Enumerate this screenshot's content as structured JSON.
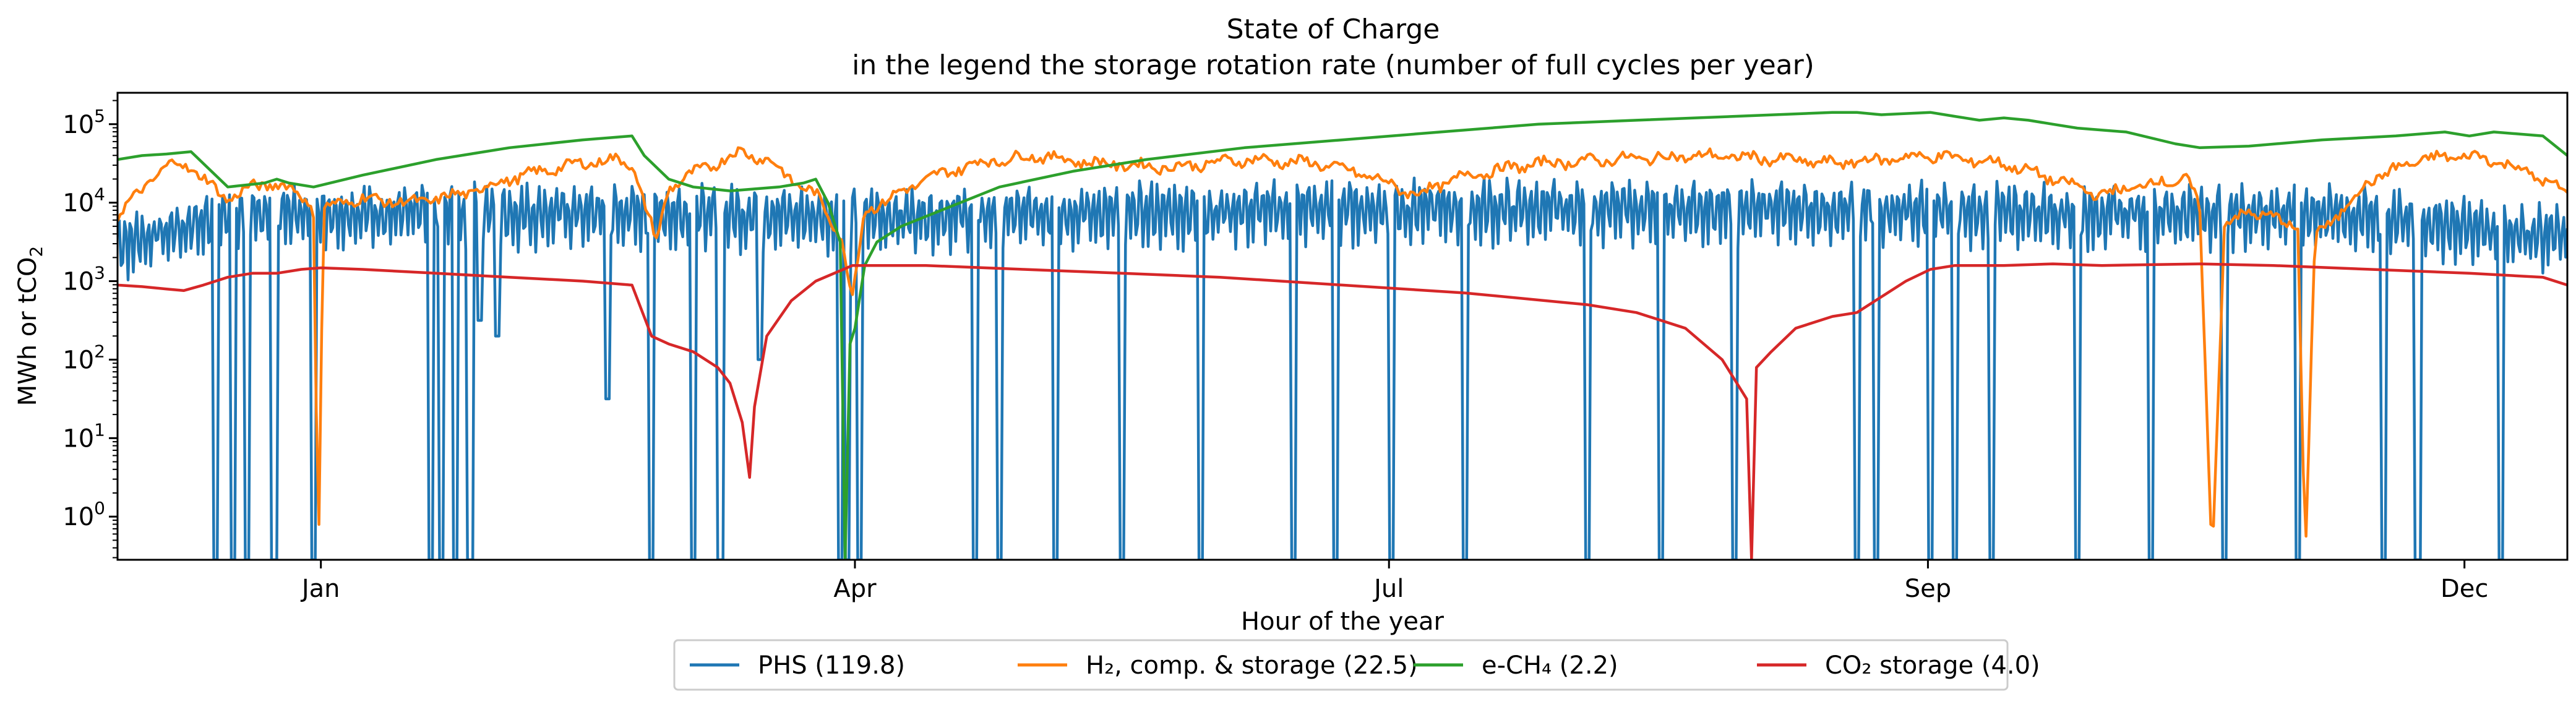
{
  "chart_data": {
    "type": "line",
    "title": "State of Charge",
    "subtitle": "in the legend the storage rotation rate (number of full cycles per year)",
    "xlabel": "Hour of the year",
    "ylabel": "MWh or tCO",
    "ylabel_sub": "2",
    "yscale": "log",
    "xlim": [
      0,
      1
    ],
    "ylim_exp": [
      -0.55,
      5.4
    ],
    "grid": false,
    "legend_placement": "bottom-center",
    "x_ticks": [
      {
        "label": "Jan",
        "pos": 0.083
      },
      {
        "label": "Apr",
        "pos": 0.301
      },
      {
        "label": "Jul",
        "pos": 0.519
      },
      {
        "label": "Sep",
        "pos": 0.739
      },
      {
        "label": "Dec",
        "pos": 0.958
      }
    ],
    "y_ticks": [
      {
        "base": "10",
        "exp": "0",
        "value": 0
      },
      {
        "base": "10",
        "exp": "1",
        "value": 1
      },
      {
        "base": "10",
        "exp": "2",
        "value": 2
      },
      {
        "base": "10",
        "exp": "3",
        "value": 3
      },
      {
        "base": "10",
        "exp": "4",
        "value": 4
      },
      {
        "base": "10",
        "exp": "5",
        "value": 5
      }
    ],
    "series": [
      {
        "name": "PHS (119.8)",
        "color": "#1f77b4",
        "baseline": [
          [
            0.0,
            3.6
          ],
          [
            0.05,
            4.0
          ],
          [
            0.1,
            4.0
          ],
          [
            0.2,
            4.0
          ],
          [
            0.3,
            3.95
          ],
          [
            0.4,
            4.0
          ],
          [
            0.5,
            4.05
          ],
          [
            0.6,
            4.05
          ],
          [
            0.7,
            4.05
          ],
          [
            0.8,
            4.0
          ],
          [
            0.9,
            4.0
          ],
          [
            1.0,
            3.7
          ]
        ],
        "drops": [
          [
            0.04,
            -0.6
          ],
          [
            0.047,
            -0.6
          ],
          [
            0.053,
            -0.6
          ],
          [
            0.064,
            -0.6
          ],
          [
            0.08,
            -0.6
          ],
          [
            0.128,
            -0.6
          ],
          [
            0.132,
            -0.6
          ],
          [
            0.138,
            -0.6
          ],
          [
            0.144,
            -0.6
          ],
          [
            0.148,
            2.5
          ],
          [
            0.155,
            2.3
          ],
          [
            0.2,
            -0.6
          ],
          [
            0.218,
            -0.6
          ],
          [
            0.2,
            1.5
          ],
          [
            0.235,
            -0.6
          ],
          [
            0.246,
            -0.6
          ],
          [
            0.262,
            2.0
          ],
          [
            0.295,
            -0.6
          ],
          [
            0.298,
            -0.6
          ],
          [
            0.303,
            -0.6
          ],
          [
            0.35,
            -0.6
          ],
          [
            0.36,
            -0.6
          ],
          [
            0.383,
            -0.6
          ],
          [
            0.41,
            -0.6
          ],
          [
            0.442,
            -0.6
          ],
          [
            0.48,
            -0.6
          ],
          [
            0.497,
            -0.6
          ],
          [
            0.52,
            -0.6
          ],
          [
            0.55,
            -0.6
          ],
          [
            0.6,
            -0.6
          ],
          [
            0.63,
            -0.6
          ],
          [
            0.66,
            -0.6
          ],
          [
            0.71,
            -0.6
          ],
          [
            0.718,
            -0.6
          ],
          [
            0.74,
            -0.6
          ],
          [
            0.75,
            -0.6
          ],
          [
            0.765,
            -0.6
          ],
          [
            0.8,
            -0.6
          ],
          [
            0.83,
            -0.6
          ],
          [
            0.86,
            -0.6
          ],
          [
            0.89,
            -0.6
          ],
          [
            0.925,
            -0.6
          ],
          [
            0.939,
            -0.6
          ],
          [
            0.973,
            -0.6
          ]
        ],
        "dips_amp": 0.9,
        "freq": 420
      },
      {
        "name": "H₂, comp. & storage (22.5)",
        "color": "#ff7f0e",
        "points": [
          [
            0.0,
            3.8
          ],
          [
            0.01,
            4.2
          ],
          [
            0.025,
            4.55
          ],
          [
            0.035,
            4.3
          ],
          [
            0.045,
            4.05
          ],
          [
            0.055,
            4.2
          ],
          [
            0.065,
            4.25
          ],
          [
            0.075,
            4.1
          ],
          [
            0.08,
            3.9
          ],
          [
            0.082,
            -0.6
          ],
          [
            0.084,
            3.9
          ],
          [
            0.09,
            4.0
          ],
          [
            0.1,
            4.05
          ],
          [
            0.12,
            4.0
          ],
          [
            0.14,
            4.1
          ],
          [
            0.16,
            4.3
          ],
          [
            0.18,
            4.45
          ],
          [
            0.2,
            4.55
          ],
          [
            0.21,
            4.5
          ],
          [
            0.215,
            4.0
          ],
          [
            0.22,
            3.5
          ],
          [
            0.225,
            4.2
          ],
          [
            0.24,
            4.45
          ],
          [
            0.255,
            4.65
          ],
          [
            0.265,
            4.55
          ],
          [
            0.275,
            4.3
          ],
          [
            0.285,
            4.1
          ],
          [
            0.295,
            3.6
          ],
          [
            0.3,
            2.8
          ],
          [
            0.305,
            3.9
          ],
          [
            0.315,
            4.05
          ],
          [
            0.33,
            4.3
          ],
          [
            0.35,
            4.5
          ],
          [
            0.375,
            4.6
          ],
          [
            0.4,
            4.5
          ],
          [
            0.43,
            4.45
          ],
          [
            0.46,
            4.55
          ],
          [
            0.49,
            4.5
          ],
          [
            0.51,
            4.35
          ],
          [
            0.53,
            4.1
          ],
          [
            0.55,
            4.35
          ],
          [
            0.58,
            4.5
          ],
          [
            0.61,
            4.55
          ],
          [
            0.65,
            4.6
          ],
          [
            0.68,
            4.55
          ],
          [
            0.7,
            4.5
          ],
          [
            0.72,
            4.55
          ],
          [
            0.74,
            4.6
          ],
          [
            0.77,
            4.5
          ],
          [
            0.79,
            4.3
          ],
          [
            0.81,
            4.1
          ],
          [
            0.83,
            4.25
          ],
          [
            0.845,
            4.3
          ],
          [
            0.85,
            3.9
          ],
          [
            0.855,
            -0.6
          ],
          [
            0.86,
            3.7
          ],
          [
            0.87,
            3.9
          ],
          [
            0.88,
            3.8
          ],
          [
            0.89,
            3.7
          ],
          [
            0.893,
            -0.6
          ],
          [
            0.897,
            3.6
          ],
          [
            0.905,
            3.8
          ],
          [
            0.92,
            4.3
          ],
          [
            0.94,
            4.55
          ],
          [
            0.96,
            4.6
          ],
          [
            0.975,
            4.5
          ],
          [
            0.99,
            4.3
          ],
          [
            1.0,
            4.1
          ]
        ],
        "noise": 0.12
      },
      {
        "name": "e-CH₄ (2.2)",
        "color": "#2ca02c",
        "points": [
          [
            0.0,
            4.55
          ],
          [
            0.01,
            4.6
          ],
          [
            0.02,
            4.62
          ],
          [
            0.03,
            4.65
          ],
          [
            0.035,
            4.5
          ],
          [
            0.045,
            4.2
          ],
          [
            0.06,
            4.25
          ],
          [
            0.065,
            4.3
          ],
          [
            0.07,
            4.25
          ],
          [
            0.08,
            4.2
          ],
          [
            0.1,
            4.35
          ],
          [
            0.13,
            4.55
          ],
          [
            0.16,
            4.7
          ],
          [
            0.19,
            4.8
          ],
          [
            0.21,
            4.85
          ],
          [
            0.215,
            4.6
          ],
          [
            0.225,
            4.3
          ],
          [
            0.235,
            4.2
          ],
          [
            0.25,
            4.15
          ],
          [
            0.27,
            4.2
          ],
          [
            0.28,
            4.25
          ],
          [
            0.285,
            4.3
          ],
          [
            0.29,
            4.0
          ],
          [
            0.295,
            3.5
          ],
          [
            0.297,
            -0.6
          ],
          [
            0.299,
            2.2
          ],
          [
            0.301,
            2.4
          ],
          [
            0.305,
            3.2
          ],
          [
            0.31,
            3.5
          ],
          [
            0.32,
            3.7
          ],
          [
            0.34,
            3.95
          ],
          [
            0.36,
            4.2
          ],
          [
            0.39,
            4.4
          ],
          [
            0.42,
            4.55
          ],
          [
            0.46,
            4.7
          ],
          [
            0.5,
            4.8
          ],
          [
            0.54,
            4.9
          ],
          [
            0.58,
            5.0
          ],
          [
            0.62,
            5.05
          ],
          [
            0.66,
            5.1
          ],
          [
            0.7,
            5.15
          ],
          [
            0.71,
            5.15
          ],
          [
            0.72,
            5.12
          ],
          [
            0.74,
            5.15
          ],
          [
            0.75,
            5.1
          ],
          [
            0.76,
            5.05
          ],
          [
            0.77,
            5.08
          ],
          [
            0.78,
            5.05
          ],
          [
            0.79,
            5.0
          ],
          [
            0.8,
            4.95
          ],
          [
            0.82,
            4.9
          ],
          [
            0.84,
            4.75
          ],
          [
            0.85,
            4.7
          ],
          [
            0.87,
            4.72
          ],
          [
            0.9,
            4.8
          ],
          [
            0.93,
            4.85
          ],
          [
            0.95,
            4.9
          ],
          [
            0.96,
            4.85
          ],
          [
            0.97,
            4.9
          ],
          [
            0.99,
            4.85
          ],
          [
            1.0,
            4.6
          ]
        ],
        "noise": 0.0
      },
      {
        "name": "CO₂ storage (4.0)",
        "color": "#d62728",
        "points": [
          [
            0.0,
            2.95
          ],
          [
            0.01,
            2.93
          ],
          [
            0.02,
            2.9
          ],
          [
            0.027,
            2.88
          ],
          [
            0.035,
            2.95
          ],
          [
            0.045,
            3.05
          ],
          [
            0.055,
            3.1
          ],
          [
            0.065,
            3.1
          ],
          [
            0.075,
            3.15
          ],
          [
            0.083,
            3.17
          ],
          [
            0.1,
            3.15
          ],
          [
            0.13,
            3.1
          ],
          [
            0.16,
            3.05
          ],
          [
            0.19,
            3.0
          ],
          [
            0.21,
            2.95
          ],
          [
            0.218,
            2.3
          ],
          [
            0.225,
            2.2
          ],
          [
            0.235,
            2.1
          ],
          [
            0.245,
            1.9
          ],
          [
            0.25,
            1.7
          ],
          [
            0.255,
            1.2
          ],
          [
            0.258,
            0.5
          ],
          [
            0.26,
            1.4
          ],
          [
            0.265,
            2.3
          ],
          [
            0.275,
            2.75
          ],
          [
            0.285,
            3.0
          ],
          [
            0.3,
            3.2
          ],
          [
            0.33,
            3.2
          ],
          [
            0.37,
            3.15
          ],
          [
            0.41,
            3.1
          ],
          [
            0.45,
            3.05
          ],
          [
            0.5,
            2.95
          ],
          [
            0.55,
            2.85
          ],
          [
            0.6,
            2.7
          ],
          [
            0.62,
            2.6
          ],
          [
            0.64,
            2.4
          ],
          [
            0.655,
            2.0
          ],
          [
            0.665,
            1.5
          ],
          [
            0.667,
            -0.6
          ],
          [
            0.669,
            1.9
          ],
          [
            0.675,
            2.1
          ],
          [
            0.685,
            2.4
          ],
          [
            0.7,
            2.55
          ],
          [
            0.71,
            2.6
          ],
          [
            0.72,
            2.8
          ],
          [
            0.73,
            3.0
          ],
          [
            0.74,
            3.15
          ],
          [
            0.75,
            3.2
          ],
          [
            0.77,
            3.2
          ],
          [
            0.79,
            3.22
          ],
          [
            0.81,
            3.2
          ],
          [
            0.85,
            3.22
          ],
          [
            0.88,
            3.2
          ],
          [
            0.92,
            3.15
          ],
          [
            0.96,
            3.1
          ],
          [
            0.99,
            3.05
          ],
          [
            1.0,
            2.95
          ]
        ],
        "noise": 0.0
      }
    ]
  }
}
